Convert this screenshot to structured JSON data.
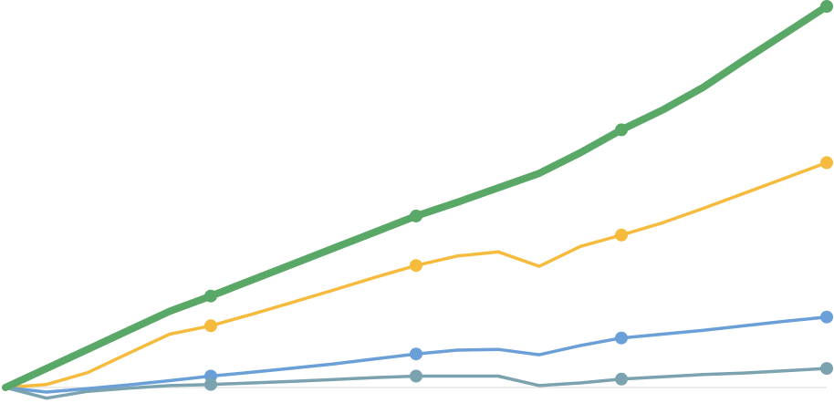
{
  "chart_data": {
    "type": "line",
    "title": "",
    "xlabel": "",
    "ylabel": "",
    "grid": false,
    "legend": "none",
    "x": [
      0,
      1,
      2,
      3,
      4,
      5,
      6,
      7,
      8,
      9,
      10,
      11,
      12,
      13,
      14,
      15,
      16,
      17,
      18,
      19,
      20
    ],
    "xlim": [
      0,
      20
    ],
    "ylim": [
      -3,
      100
    ],
    "series": [
      {
        "color": "#5aa867",
        "stroke": 8,
        "marker_every": 5,
        "values": [
          0,
          5,
          10,
          15,
          20,
          24.0,
          28.2,
          32.4,
          36.6,
          40.8,
          45,
          48.6,
          52.4,
          56.2,
          61.6,
          67.6,
          72.8,
          78.8,
          86.0,
          93.0,
          100
        ]
      },
      {
        "color": "#f6bb3c",
        "stroke": 3.5,
        "marker_every": 5,
        "values": [
          0,
          0.8,
          3.9,
          9.0,
          14.0,
          16.2,
          19.2,
          22.4,
          25.6,
          28.9,
          32,
          34.5,
          35.6,
          31.8,
          37.0,
          40.0,
          43.2,
          47.0,
          51.0,
          55.0,
          59
        ]
      },
      {
        "color": "#6a9fd7",
        "stroke": 3.5,
        "marker_every": 5,
        "values": [
          0,
          -1.2,
          -0.3,
          0.7,
          1.8,
          3.0,
          4.0,
          5.1,
          6.2,
          7.5,
          8.8,
          9.8,
          10.0,
          8.6,
          11.0,
          13.0,
          14.0,
          15.0,
          16.2,
          17.4,
          18.5
        ]
      },
      {
        "color": "#7ba2af",
        "stroke": 3.5,
        "marker_every": 5,
        "values": [
          0,
          -2.8,
          -1.0,
          -0.2,
          0.5,
          0.8,
          1.2,
          1.6,
          2.1,
          2.6,
          3,
          3.0,
          3.0,
          0.5,
          1.2,
          2.2,
          2.8,
          3.4,
          3.8,
          4.4,
          5.0
        ]
      }
    ]
  }
}
